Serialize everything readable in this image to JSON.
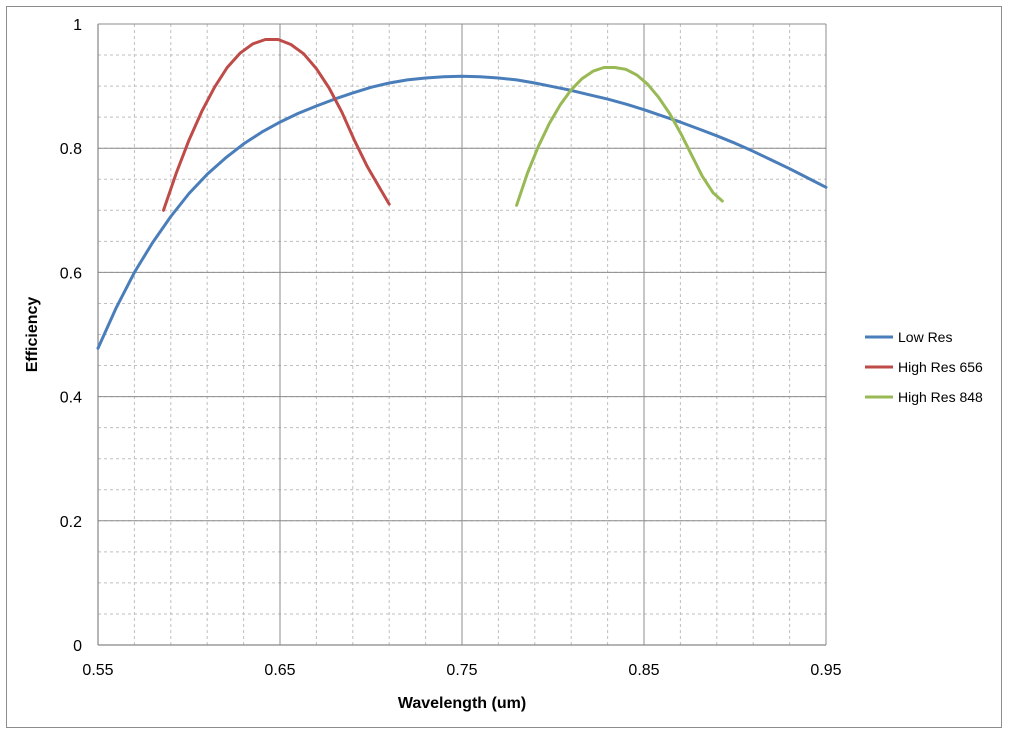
{
  "chart_data": {
    "type": "line",
    "title": "",
    "xlabel": "Wavelength (um)",
    "ylabel": "Efficiency",
    "xlim": [
      0.55,
      0.95
    ],
    "ylim": [
      0,
      1
    ],
    "x_ticks": [
      0.55,
      0.65,
      0.75,
      0.85,
      0.95
    ],
    "x_tick_labels": [
      "0.55",
      "0.65",
      "0.75",
      "0.85",
      "0.95"
    ],
    "y_ticks": [
      0,
      0.2,
      0.4,
      0.6,
      0.8,
      1
    ],
    "y_tick_labels": [
      "0",
      "0.2",
      "0.4",
      "0.6",
      "0.8",
      "1"
    ],
    "grid": {
      "major": true,
      "minor": true
    },
    "legend_position": "right",
    "series": [
      {
        "name": "Low Res",
        "color": "#4a7ebb",
        "x": [
          0.55,
          0.56,
          0.57,
          0.58,
          0.59,
          0.6,
          0.61,
          0.62,
          0.63,
          0.64,
          0.65,
          0.66,
          0.67,
          0.68,
          0.69,
          0.7,
          0.71,
          0.72,
          0.73,
          0.74,
          0.75,
          0.76,
          0.77,
          0.78,
          0.79,
          0.8,
          0.81,
          0.82,
          0.83,
          0.84,
          0.85,
          0.86,
          0.87,
          0.88,
          0.89,
          0.9,
          0.91,
          0.92,
          0.93,
          0.94,
          0.95
        ],
        "y": [
          0.478,
          0.543,
          0.6,
          0.648,
          0.69,
          0.727,
          0.758,
          0.784,
          0.807,
          0.826,
          0.842,
          0.856,
          0.868,
          0.879,
          0.889,
          0.898,
          0.905,
          0.91,
          0.913,
          0.915,
          0.916,
          0.915,
          0.913,
          0.91,
          0.905,
          0.899,
          0.893,
          0.886,
          0.879,
          0.871,
          0.862,
          0.852,
          0.842,
          0.831,
          0.82,
          0.808,
          0.795,
          0.781,
          0.767,
          0.752,
          0.737
        ]
      },
      {
        "name": "High Res 656",
        "color": "#be4b48",
        "x": [
          0.586,
          0.593,
          0.6,
          0.607,
          0.614,
          0.621,
          0.628,
          0.635,
          0.642,
          0.649,
          0.656,
          0.663,
          0.67,
          0.677,
          0.684,
          0.691,
          0.698,
          0.705,
          0.71
        ],
        "y": [
          0.7,
          0.76,
          0.813,
          0.859,
          0.898,
          0.93,
          0.953,
          0.968,
          0.975,
          0.975,
          0.967,
          0.952,
          0.928,
          0.897,
          0.858,
          0.812,
          0.77,
          0.735,
          0.71
        ]
      },
      {
        "name": "High Res 848",
        "color": "#98b954",
        "x": [
          0.78,
          0.786,
          0.792,
          0.798,
          0.804,
          0.81,
          0.816,
          0.822,
          0.828,
          0.834,
          0.84,
          0.846,
          0.852,
          0.858,
          0.864,
          0.87,
          0.876,
          0.882,
          0.888,
          0.893
        ],
        "y": [
          0.708,
          0.76,
          0.803,
          0.84,
          0.87,
          0.894,
          0.912,
          0.924,
          0.93,
          0.93,
          0.927,
          0.918,
          0.903,
          0.882,
          0.856,
          0.825,
          0.79,
          0.755,
          0.728,
          0.715
        ]
      }
    ]
  }
}
